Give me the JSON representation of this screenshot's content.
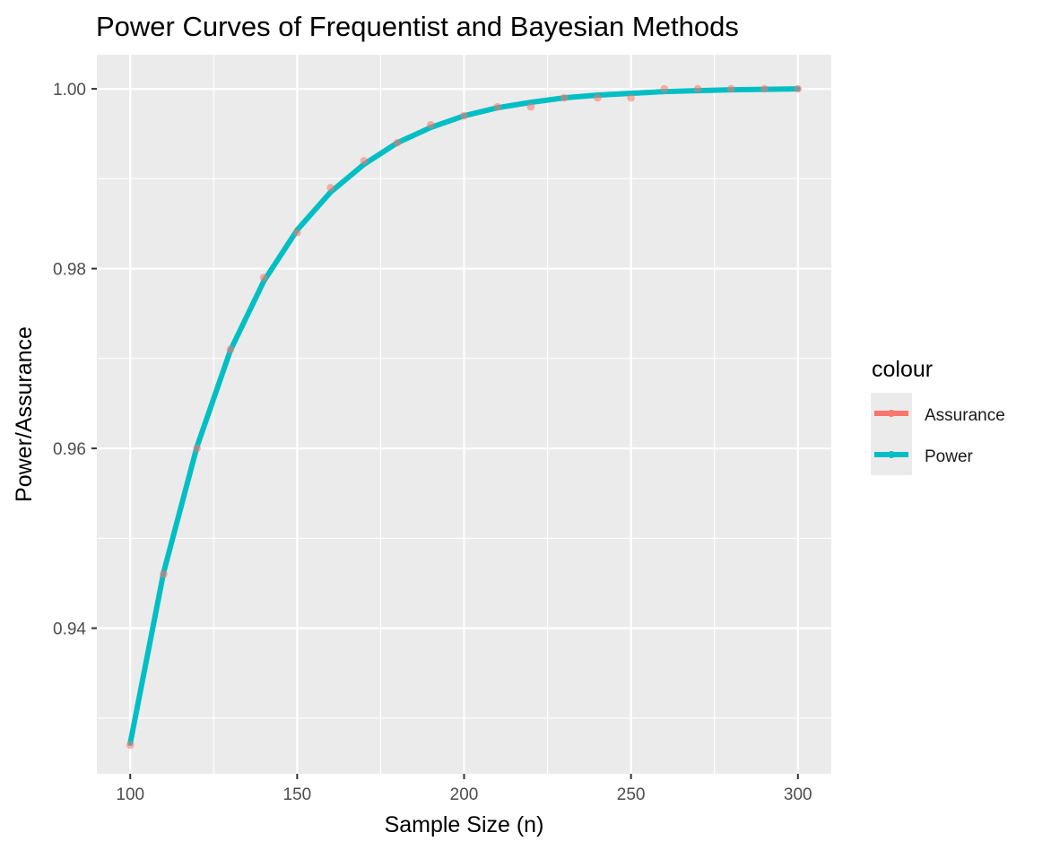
{
  "chart_data": {
    "type": "line",
    "title": "Power Curves of Frequentist and Bayesian Methods",
    "xlabel": "Sample Size (n)",
    "ylabel": "Power/Assurance",
    "xlim": [
      90,
      310
    ],
    "ylim": [
      0.9238,
      1.0038
    ],
    "x_ticks": [
      100,
      150,
      200,
      250,
      300
    ],
    "x_tick_labels": [
      "100",
      "150",
      "200",
      "250",
      "300"
    ],
    "x_minor": [
      125,
      175,
      225,
      275
    ],
    "y_ticks": [
      0.94,
      0.96,
      0.98,
      1.0
    ],
    "y_tick_labels": [
      "0.94",
      "0.96",
      "0.98",
      "1.00"
    ],
    "y_minor": [
      0.93,
      0.95,
      0.97,
      0.99
    ],
    "grid": true,
    "legend": {
      "title": "colour",
      "position": "right"
    },
    "x": [
      100,
      110,
      120,
      130,
      140,
      150,
      160,
      170,
      180,
      190,
      200,
      210,
      220,
      230,
      240,
      250,
      260,
      270,
      280,
      290,
      300
    ],
    "series": [
      {
        "name": "Assurance",
        "color": "#F8766D",
        "style": "points",
        "values": [
          0.927,
          0.946,
          0.96,
          0.971,
          0.979,
          0.984,
          0.989,
          0.992,
          0.994,
          0.996,
          0.997,
          0.998,
          0.998,
          0.999,
          0.999,
          0.999,
          1.0,
          1.0,
          1.0,
          1.0,
          1.0
        ]
      },
      {
        "name": "Power",
        "color": "#00BFC4",
        "style": "line",
        "values": [
          0.9272,
          0.9462,
          0.9602,
          0.9709,
          0.9786,
          0.9843,
          0.9885,
          0.9916,
          0.994,
          0.9957,
          0.997,
          0.9979,
          0.9985,
          0.999,
          0.9993,
          0.9995,
          0.9997,
          0.9998,
          0.9999,
          0.99995,
          1.0
        ]
      }
    ]
  }
}
